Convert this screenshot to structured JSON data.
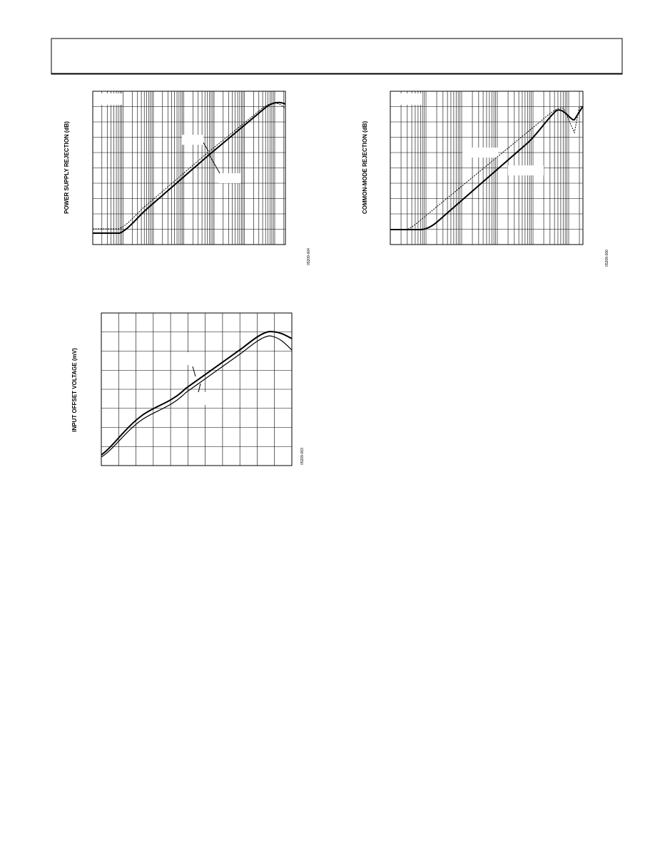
{
  "figures": [
    {
      "y_label": "POWER SUPPLY REJECTION (dB)",
      "code": "05209-004"
    },
    {
      "y_label": "COMMON-MODE REJECTION (dB)",
      "code": "05209-006"
    },
    {
      "y_label": "INPUT OFFSET VOLTAGE (mV)",
      "code": "05209-003"
    }
  ]
}
